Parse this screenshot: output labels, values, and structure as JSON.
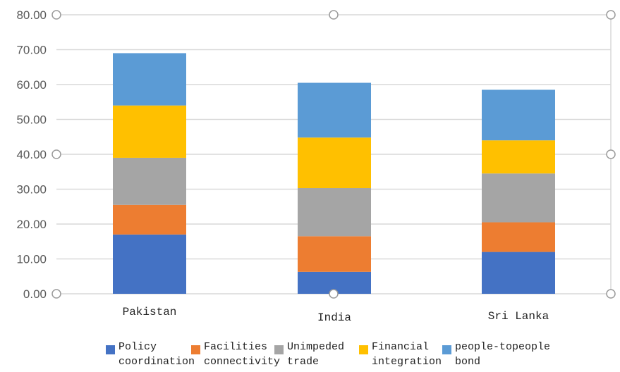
{
  "chart_data": {
    "type": "bar",
    "stacked": true,
    "categories": [
      "Pakistan",
      "India",
      "Sri Lanka"
    ],
    "series": [
      {
        "name": "Policy coordination",
        "name_lines": [
          "Policy",
          "coordination"
        ],
        "values": [
          17.0,
          6.3,
          12.0
        ],
        "color": "#4472c4"
      },
      {
        "name": "Facilities connectivity",
        "name_lines": [
          "Facilities",
          "connectivity"
        ],
        "values": [
          8.5,
          10.2,
          8.5
        ],
        "color": "#ed7d31"
      },
      {
        "name": "Unimpeded trade",
        "name_lines": [
          "Unimpeded",
          "trade"
        ],
        "values": [
          13.5,
          13.8,
          14.0
        ],
        "color": "#a5a5a5"
      },
      {
        "name": "Financial integration",
        "name_lines": [
          "Financial",
          "integration"
        ],
        "values": [
          15.0,
          14.5,
          9.5
        ],
        "color": "#ffc000"
      },
      {
        "name": "people-topeople bond",
        "name_lines": [
          "people-topeople",
          "bond"
        ],
        "values": [
          15.0,
          15.7,
          14.5
        ],
        "color": "#5b9bd5"
      }
    ],
    "ylim": [
      0,
      80
    ],
    "yticks": [
      "0.00",
      "10.00",
      "20.00",
      "30.00",
      "40.00",
      "50.00",
      "60.00",
      "70.00",
      "80.00"
    ],
    "grid": true,
    "legend_position": "bottom",
    "title": "",
    "xlabel": "",
    "ylabel": ""
  }
}
